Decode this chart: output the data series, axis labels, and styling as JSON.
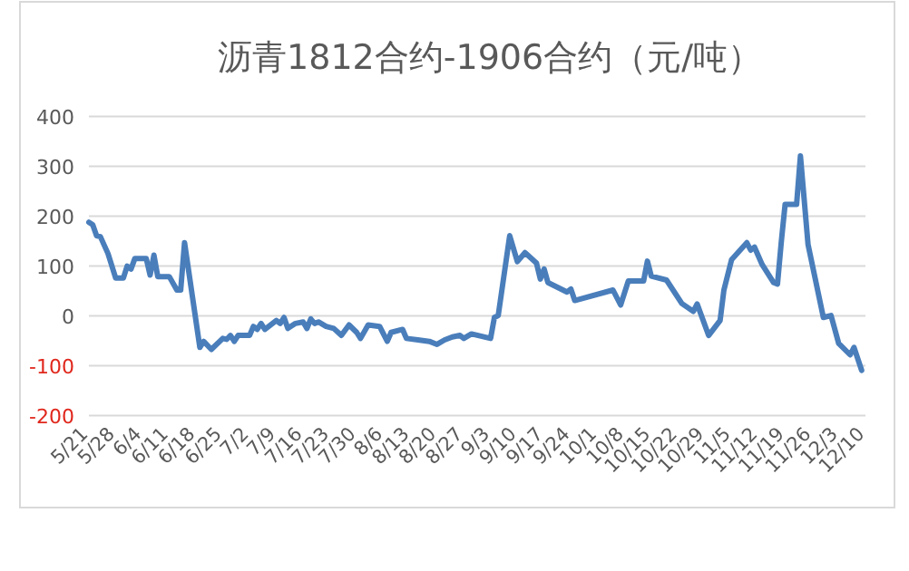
{
  "chart_data": {
    "type": "line",
    "title": "沥青1812合约-1906合约（元/吨）",
    "x": [
      "--05-21",
      "--05-22",
      "--05-23",
      "--05-24",
      "--05-26",
      "--05-28",
      "--05-30",
      "--05-31",
      "--06-01",
      "--06-02",
      "--06-05",
      "--06-06",
      "--06-07",
      "--06-08",
      "--06-11",
      "--06-13",
      "--06-14",
      "--06-15",
      "--06-19",
      "--06-20",
      "--06-22",
      "--06-25",
      "--06-26",
      "--06-27",
      "--06-28",
      "--06-29",
      "--07-02",
      "--07-03",
      "--07-04",
      "--07-05",
      "--07-06",
      "--07-09",
      "--07-10",
      "--07-11",
      "--07-12",
      "--07-14",
      "--07-16",
      "--07-17",
      "--07-18",
      "--07-19",
      "--07-20",
      "--07-22",
      "--07-24",
      "--07-26",
      "--07-28",
      "--07-30",
      "--07-31",
      "--08-02",
      "--08-05",
      "--08-07",
      "--08-08",
      "--08-11",
      "--08-12",
      "--08-15",
      "--08-18",
      "--08-20",
      "--08-22",
      "--08-24",
      "--08-26",
      "--08-27",
      "--08-29",
      "--09-03",
      "--09-04",
      "--09-05",
      "--09-08",
      "--09-10",
      "--09-12",
      "--09-15",
      "--09-16",
      "--09-17",
      "--09-18",
      "--09-23",
      "--09-24",
      "--09-25",
      "--10-05",
      "--10-07",
      "--10-09",
      "--10-13",
      "--10-14",
      "--10-15",
      "--10-19",
      "--10-23",
      "--10-26",
      "--10-27",
      "--10-30",
      "--11-02",
      "--11-03",
      "--11-05",
      "--11-09",
      "--11-10",
      "--11-11",
      "--11-13",
      "--11-16",
      "--11-17",
      "--11-18",
      "--11-19",
      "--11-22",
      "--11-23",
      "--11-25",
      "--11-29",
      "--12-01",
      "--12-03",
      "--12-06",
      "--12-07",
      "--12-09"
    ],
    "series": [
      {
        "color": "#4a7ebb",
        "values": [
          188,
          183,
          161,
          159,
          125,
          76,
          76,
          100,
          94,
          115,
          115,
          82,
          122,
          79,
          79,
          52,
          52,
          147,
          -63,
          -51,
          -67,
          -45,
          -47,
          -39,
          -51,
          -39,
          -39,
          -21,
          -27,
          -15,
          -27,
          -9,
          -15,
          -3,
          -25,
          -15,
          -12,
          -25,
          -6,
          -15,
          -12,
          -21,
          -25,
          -39,
          -18,
          -33,
          -45,
          -18,
          -21,
          -51,
          -33,
          -27,
          -45,
          -48,
          -51,
          -57,
          -48,
          -42,
          -39,
          -45,
          -36,
          -45,
          -3,
          1,
          161,
          109,
          127,
          106,
          74,
          94,
          67,
          48,
          54,
          31,
          52,
          22,
          70,
          70,
          110,
          80,
          72,
          25,
          9,
          24,
          -39,
          -9,
          52,
          113,
          147,
          132,
          138,
          103,
          67,
          64,
          149,
          224,
          224,
          321,
          143,
          -3,
          1,
          -55,
          -78,
          -63,
          -109
        ]
      }
    ],
    "xlim": [
      "--05-21",
      "--12-10"
    ],
    "xticks": [
      {
        "value": "--05-21",
        "label": "5/21"
      },
      {
        "value": "--05-28",
        "label": "5/28"
      },
      {
        "value": "--06-04",
        "label": "6/4"
      },
      {
        "value": "--06-11",
        "label": "6/11"
      },
      {
        "value": "--06-18",
        "label": "6/18"
      },
      {
        "value": "--06-25",
        "label": "6/25"
      },
      {
        "value": "--07-02",
        "label": "7/2"
      },
      {
        "value": "--07-09",
        "label": "7/9"
      },
      {
        "value": "--07-16",
        "label": "7/16"
      },
      {
        "value": "--07-23",
        "label": "7/23"
      },
      {
        "value": "--07-30",
        "label": "7/30"
      },
      {
        "value": "--08-06",
        "label": "8/6"
      },
      {
        "value": "--08-13",
        "label": "8/13"
      },
      {
        "value": "--08-20",
        "label": "8/20"
      },
      {
        "value": "--08-27",
        "label": "8/27"
      },
      {
        "value": "--09-03",
        "label": "9/3"
      },
      {
        "value": "--09-10",
        "label": "9/10"
      },
      {
        "value": "--09-17",
        "label": "9/17"
      },
      {
        "value": "--09-24",
        "label": "9/24"
      },
      {
        "value": "--10-01",
        "label": "10/1"
      },
      {
        "value": "--10-08",
        "label": "10/8"
      },
      {
        "value": "--10-15",
        "label": "10/15"
      },
      {
        "value": "--10-22",
        "label": "10/22"
      },
      {
        "value": "--10-29",
        "label": "10/29"
      },
      {
        "value": "--11-05",
        "label": "11/5"
      },
      {
        "value": "--11-12",
        "label": "11/12"
      },
      {
        "value": "--11-19",
        "label": "11/19"
      },
      {
        "value": "--11-26",
        "label": "11/26"
      },
      {
        "value": "--12-03",
        "label": "12/3"
      },
      {
        "value": "--12-10",
        "label": "12/10"
      }
    ],
    "ylim": [
      -200,
      400
    ],
    "yticks": [
      -200,
      -100,
      0,
      100,
      200,
      300,
      400
    ],
    "grid": "y",
    "marker": "none",
    "line_style": "solid"
  }
}
